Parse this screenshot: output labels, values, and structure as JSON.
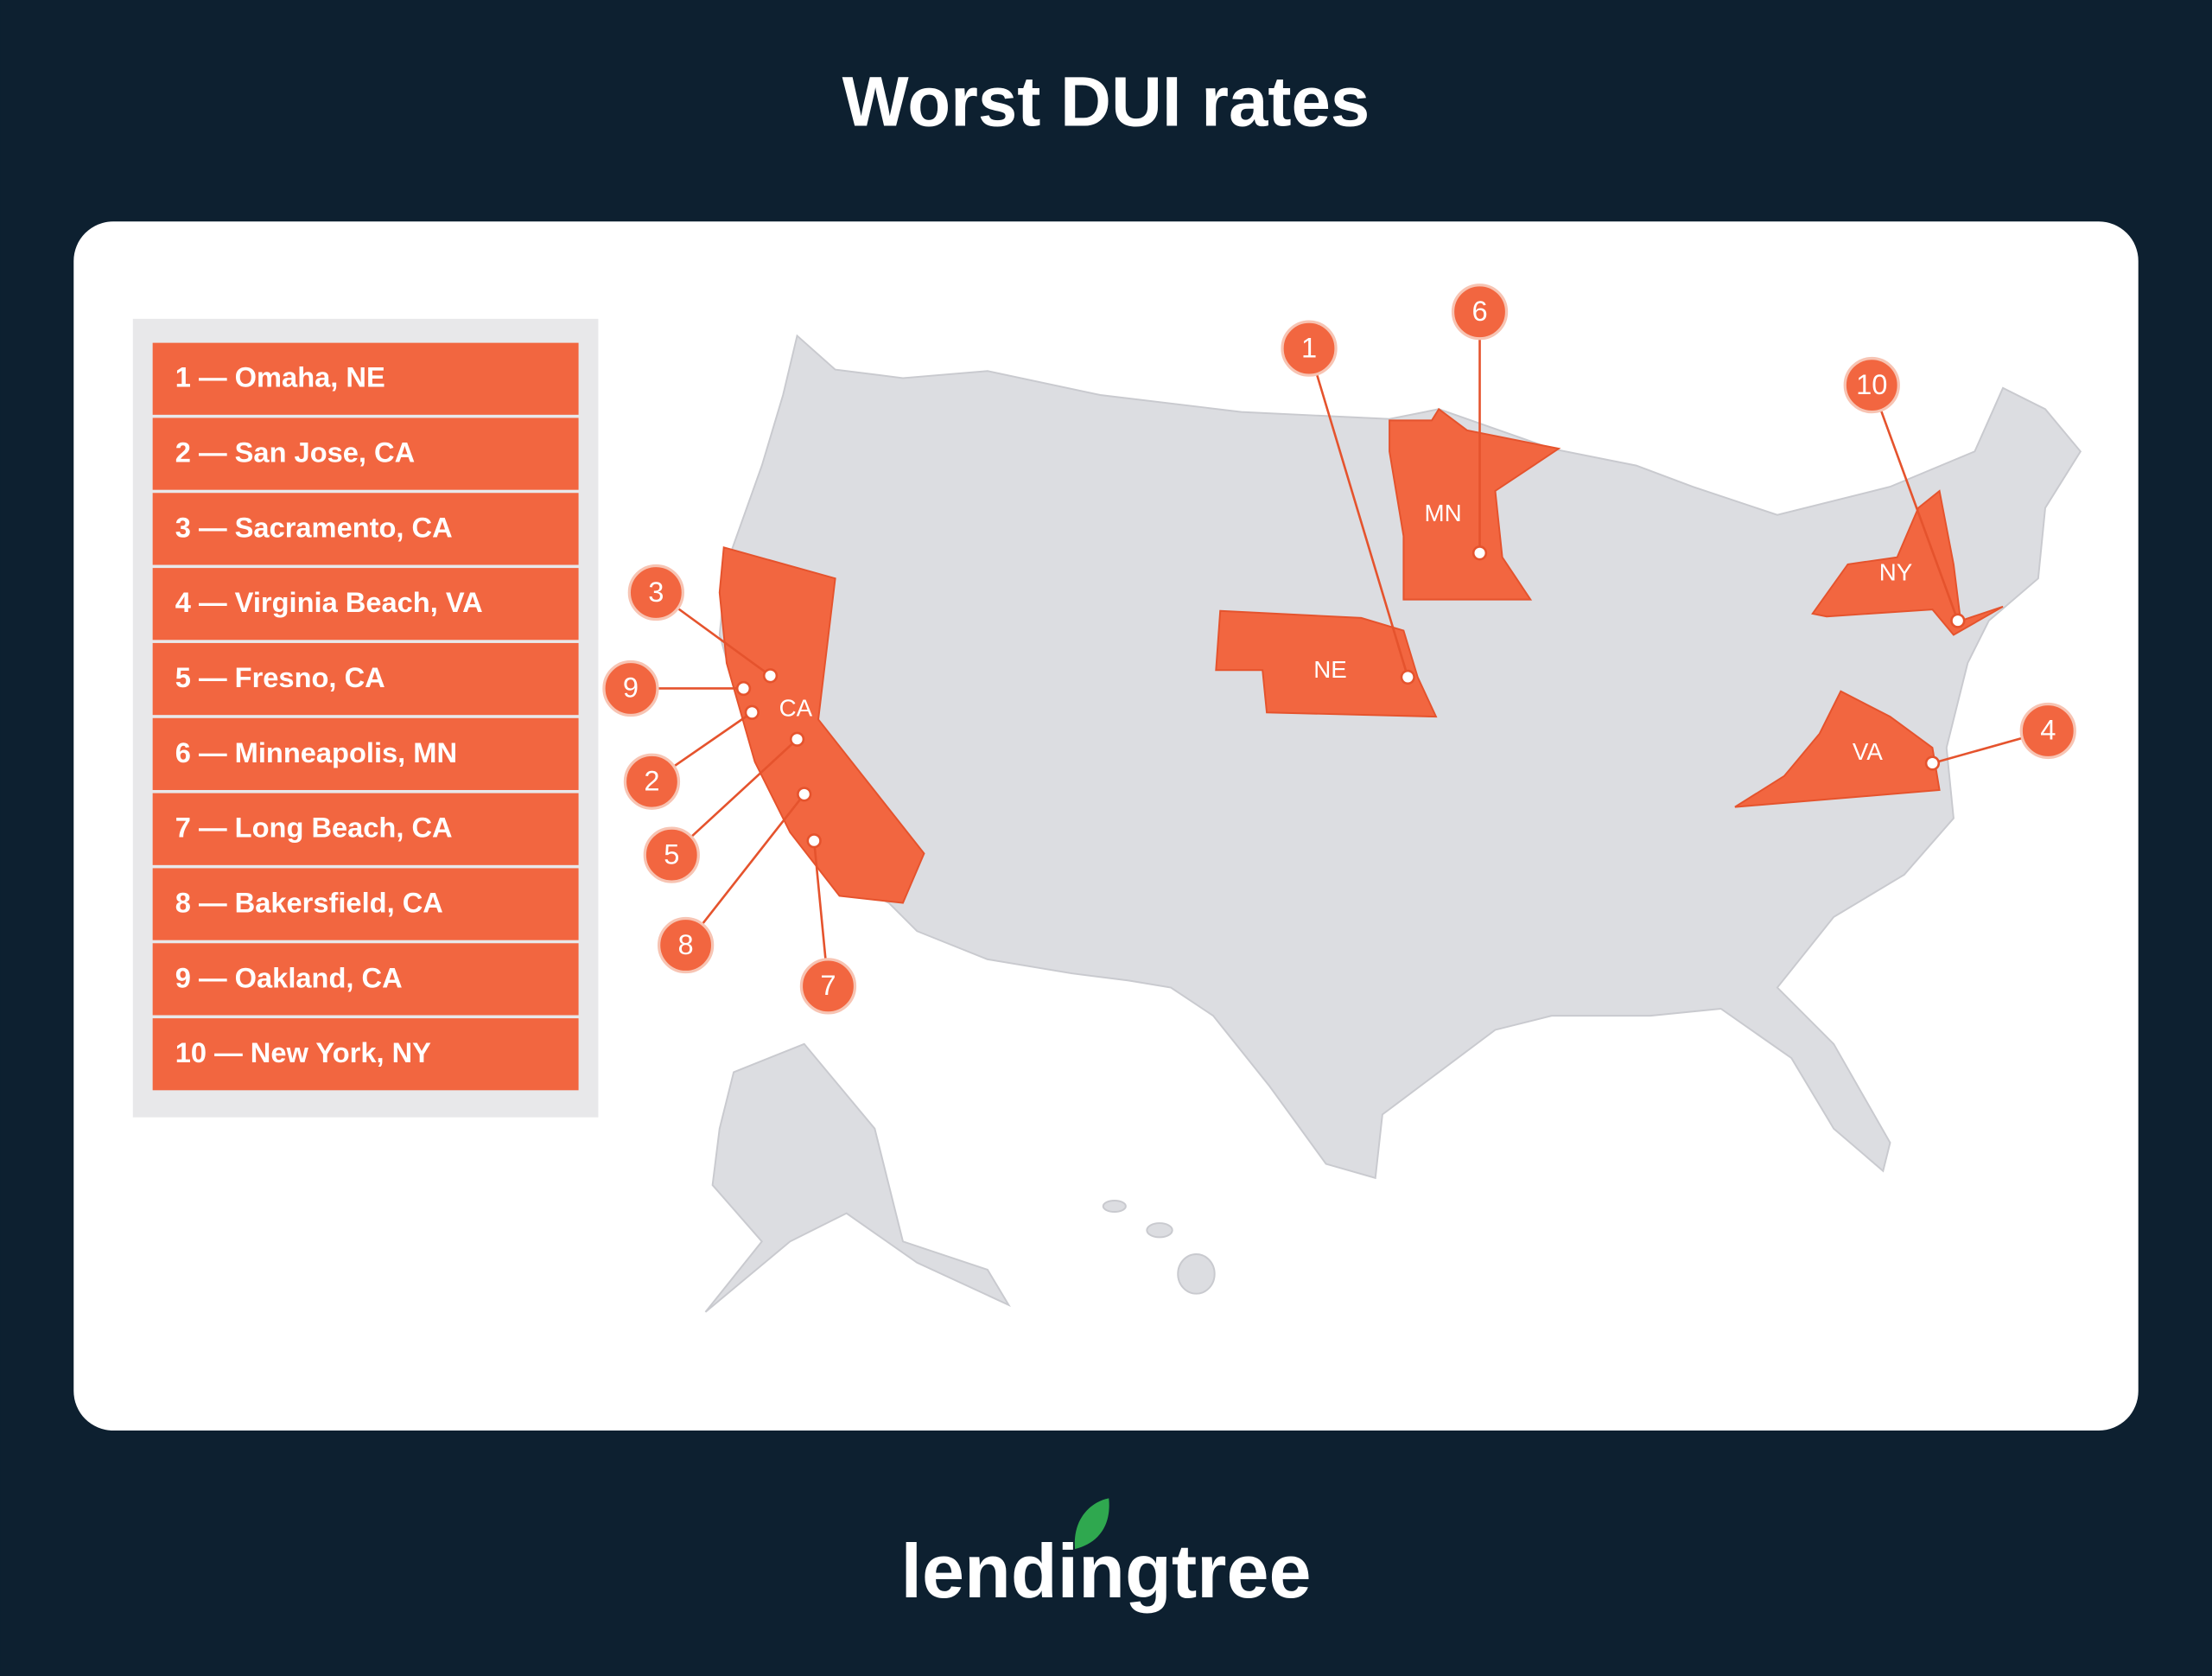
{
  "title": "Worst DUI rates",
  "list": [
    "1 — Omaha, NE",
    "2 — San Jose, CA",
    "3 — Sacramento, CA",
    "4 — Virginia Beach, VA",
    "5 — Fresno, CA",
    "6 — Minneapolis, MN",
    "7 — Long Beach, CA",
    "8 — Bakersfield, CA",
    "9 — Oakland, CA",
    "10 — New York, NY"
  ],
  "states": [
    "CA",
    "MN",
    "NE",
    "NY",
    "VA"
  ],
  "markers": [
    "1",
    "2",
    "3",
    "4",
    "5",
    "6",
    "7",
    "8",
    "9",
    "10"
  ],
  "logo": "lendingtree"
}
